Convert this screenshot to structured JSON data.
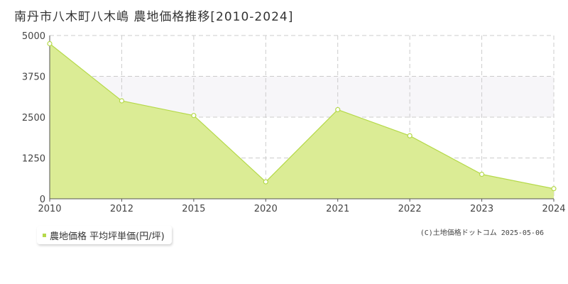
{
  "colors": {
    "fill": "#dbec95",
    "line": "#b5d94a",
    "point_fill": "#ffffff",
    "point_stroke": "#b5d94a",
    "grid": "#cccccc",
    "band": "#f7f6f9",
    "axis": "#555555",
    "tick_text": "#444444"
  },
  "chart_data": {
    "type": "area",
    "title": "南丹市八木町八木嶋 農地価格推移[2010-2024]",
    "categories": [
      "2010",
      "2012",
      "2015",
      "2020",
      "2021",
      "2022",
      "2023",
      "2024"
    ],
    "series": [
      {
        "name": "農地価格 平均坪単価(円/坪)",
        "values": [
          4750,
          3000,
          2550,
          520,
          2730,
          1930,
          750,
          310
        ]
      }
    ],
    "y_ticks": [
      "0",
      "1250",
      "2500",
      "3750",
      "5000"
    ],
    "ylim": [
      0,
      5000
    ],
    "grid": true,
    "legend_position": "bottom-left",
    "copyright": "(C)土地価格ドットコム 2025-05-06"
  }
}
